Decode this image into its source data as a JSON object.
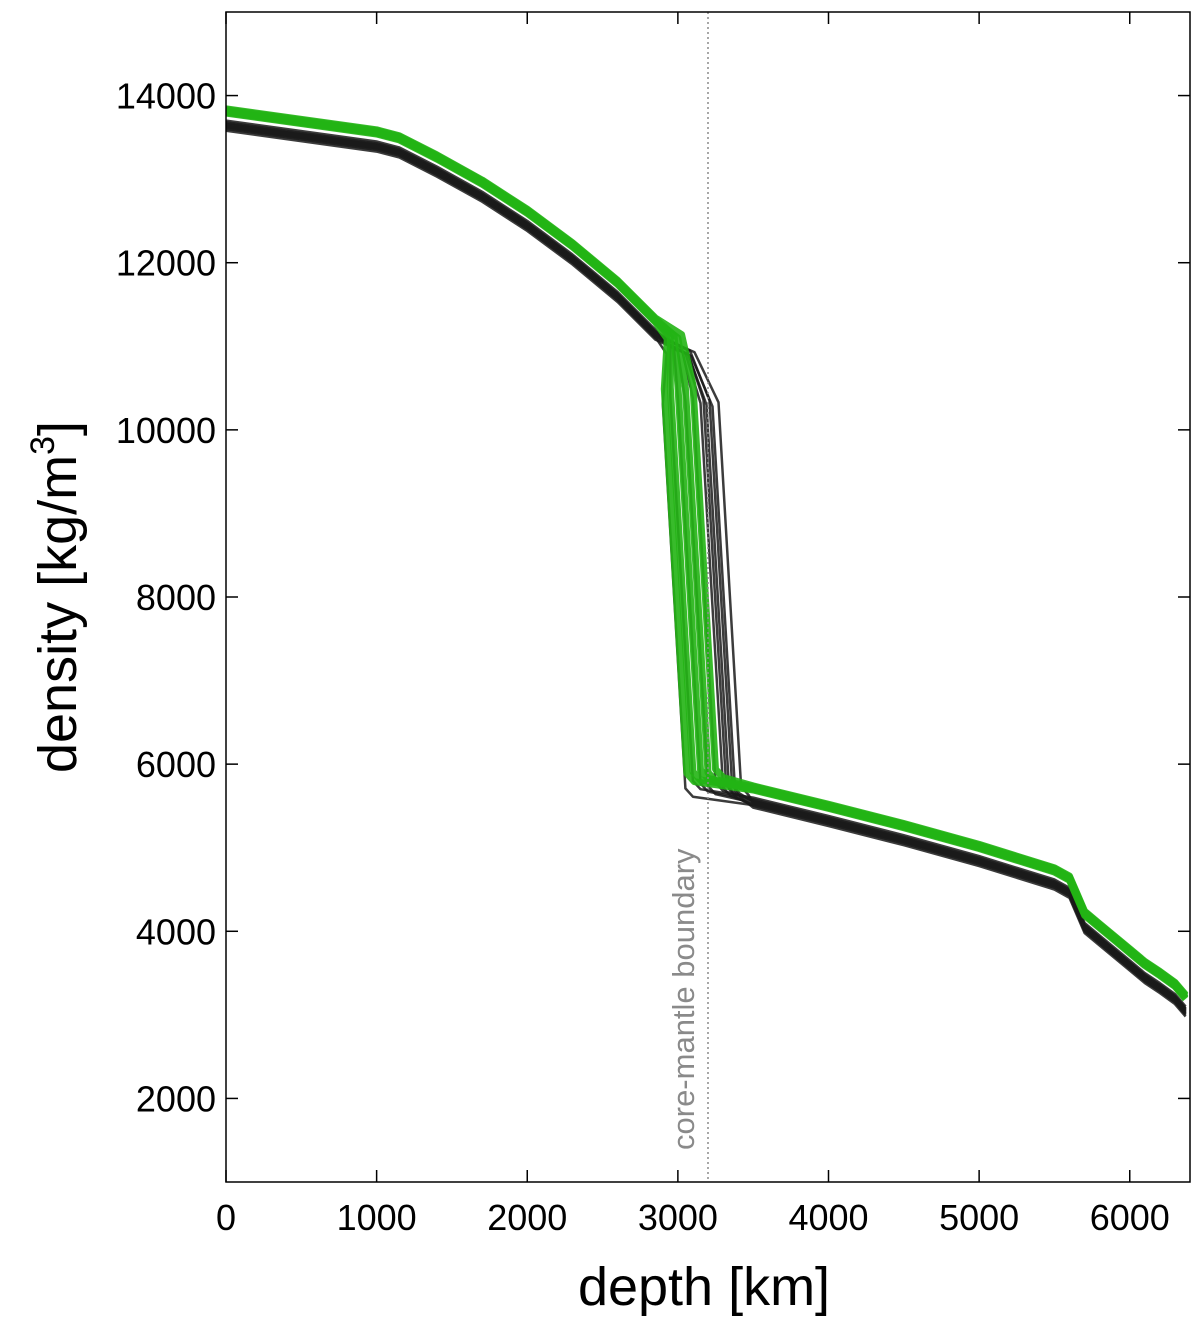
{
  "chart_data": {
    "type": "line",
    "title": "",
    "xlabel": "depth [km]",
    "ylabel_main": "density [kg/m",
    "ylabel_sup": "3",
    "ylabel_close": "]",
    "xlim": [
      0,
      6400
    ],
    "ylim": [
      1000,
      15000
    ],
    "xticks": [
      0,
      1000,
      2000,
      3000,
      4000,
      5000,
      6000
    ],
    "yticks": [
      2000,
      4000,
      6000,
      8000,
      10000,
      12000,
      14000
    ],
    "grid": false,
    "annotation": {
      "text": "core-mantle boundary",
      "x": 3200,
      "color": "#8a8a8a"
    },
    "colors": {
      "black_ensemble": "#1a1a1a",
      "green_ensemble": "#22b414",
      "boundary": "#8a8a8a"
    },
    "base_profile": {
      "x": [
        0,
        1000,
        1150,
        1400,
        1700,
        2000,
        2300,
        2600,
        2850,
        3000,
        3050,
        3200,
        3250,
        3500,
        4000,
        4500,
        5000,
        5500,
        5600,
        5700,
        5800,
        5900,
        6000,
        6100,
        6200,
        6300,
        6371
      ],
      "y": [
        13700,
        13450,
        13380,
        13150,
        12850,
        12500,
        12100,
        11650,
        11200,
        11000,
        10400,
        5800,
        5700,
        5600,
        5380,
        5150,
        4900,
        4620,
        4520,
        4100,
        3950,
        3800,
        3650,
        3500,
        3380,
        3250,
        3100
      ]
    },
    "series": [
      {
        "group": "black",
        "jump_x": 3100,
        "y_offset": 0
      },
      {
        "group": "black",
        "jump_x": 3150,
        "y_offset": -30
      },
      {
        "group": "black",
        "jump_x": 3200,
        "y_offset": -60
      },
      {
        "group": "black",
        "jump_x": 3250,
        "y_offset": -20
      },
      {
        "group": "black",
        "jump_x": 3300,
        "y_offset": -80
      },
      {
        "group": "black",
        "jump_x": 3320,
        "y_offset": -40
      },
      {
        "group": "black",
        "jump_x": 3340,
        "y_offset": -100
      },
      {
        "group": "black",
        "jump_x": 3360,
        "y_offset": -50
      },
      {
        "group": "black",
        "jump_x": 3380,
        "y_offset": -120
      },
      {
        "group": "black",
        "jump_x": 3420,
        "y_offset": -70
      },
      {
        "group": "black",
        "jump_x": 3050,
        "y_offset": -90
      },
      {
        "group": "green",
        "jump_x": 3060,
        "y_offset": 90
      },
      {
        "group": "green",
        "jump_x": 3100,
        "y_offset": 110
      },
      {
        "group": "green",
        "jump_x": 3150,
        "y_offset": 130
      },
      {
        "group": "green",
        "jump_x": 3200,
        "y_offset": 100
      },
      {
        "group": "green",
        "jump_x": 3250,
        "y_offset": 140
      }
    ]
  }
}
